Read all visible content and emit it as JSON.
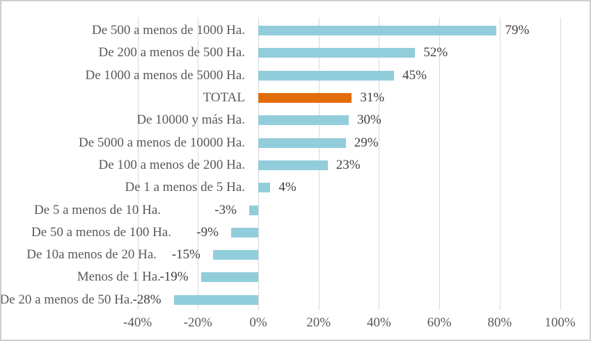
{
  "chart_data": {
    "type": "bar",
    "orientation": "horizontal",
    "title": "",
    "xlabel": "",
    "ylabel": "",
    "xlim": [
      -40,
      100
    ],
    "grid": true,
    "legend": false,
    "categories": [
      "De 500 a menos de 1000 Ha.",
      "De 200 a menos de 500 Ha.",
      "De 1000 a menos de 5000 Ha.",
      "TOTAL",
      "De 10000 y más Ha.",
      "De 5000 a menos de 10000 Ha.",
      "De 100 a menos de 200 Ha.",
      "De 1 a menos de 5 Ha.",
      "De 5 a menos de 10 Ha.",
      "De 50 a menos de 100 Ha.",
      "De 10a menos de 20 Ha.",
      "Menos de 1 Ha.",
      "De 20 a menos de 50 Ha."
    ],
    "values": [
      79,
      52,
      45,
      31,
      30,
      29,
      23,
      4,
      -3,
      -9,
      -15,
      -19,
      -28
    ],
    "value_labels": [
      "79%",
      "52%",
      "45%",
      "31%",
      "30%",
      "29%",
      "23%",
      "4%",
      "-3%",
      "-9%",
      "-15%",
      "-19%",
      "-28%"
    ],
    "highlight": {
      "category": "TOTAL",
      "color": "#E36C0A"
    },
    "bar_color": "#92CDDC",
    "x_ticks": [
      {
        "value": -40,
        "label": "-40%"
      },
      {
        "value": -20,
        "label": "-20%"
      },
      {
        "value": 0,
        "label": "0%"
      },
      {
        "value": 20,
        "label": "20%"
      },
      {
        "value": 40,
        "label": "40%"
      },
      {
        "value": 60,
        "label": "60%"
      },
      {
        "value": 80,
        "label": "80%"
      },
      {
        "value": 100,
        "label": "100%"
      }
    ],
    "colors": {
      "gridline": "#D9D9D9",
      "category_text": "#595959",
      "value_text": "#404040",
      "canvas_border": "#D0CECE",
      "background": "#FFFFFF"
    }
  }
}
